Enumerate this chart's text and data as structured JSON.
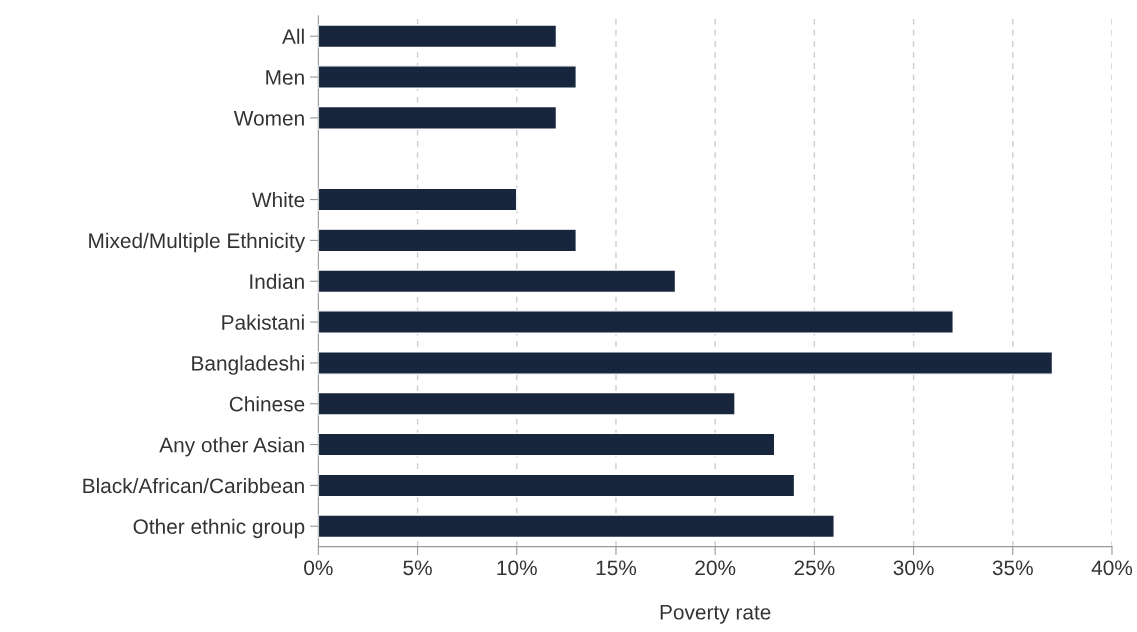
{
  "chart_data": {
    "type": "bar",
    "orientation": "horizontal",
    "xlabel": "Poverty rate",
    "categories": [
      "All",
      "Men",
      "Women",
      null,
      "White",
      "Mixed/Multiple Ethnicity",
      "Indian",
      "Pakistani",
      "Bangladeshi",
      "Chinese",
      "Any other Asian",
      "Black/African/Caribbean",
      "Other ethnic group"
    ],
    "values": [
      12,
      13,
      12,
      null,
      10,
      13,
      18,
      32,
      37,
      21,
      23,
      24,
      26
    ],
    "color": "#17263c",
    "xlim": [
      0,
      40
    ],
    "xticks": [
      {
        "value": 0,
        "label": "0%"
      },
      {
        "value": 5,
        "label": "5%"
      },
      {
        "value": 10,
        "label": "10%"
      },
      {
        "value": 15,
        "label": "15%"
      },
      {
        "value": 20,
        "label": "20%"
      },
      {
        "value": 25,
        "label": "25%"
      },
      {
        "value": 30,
        "label": "30%"
      },
      {
        "value": 35,
        "label": "35%"
      },
      {
        "value": 40,
        "label": "40%"
      }
    ],
    "grid": "x",
    "legend": false
  }
}
